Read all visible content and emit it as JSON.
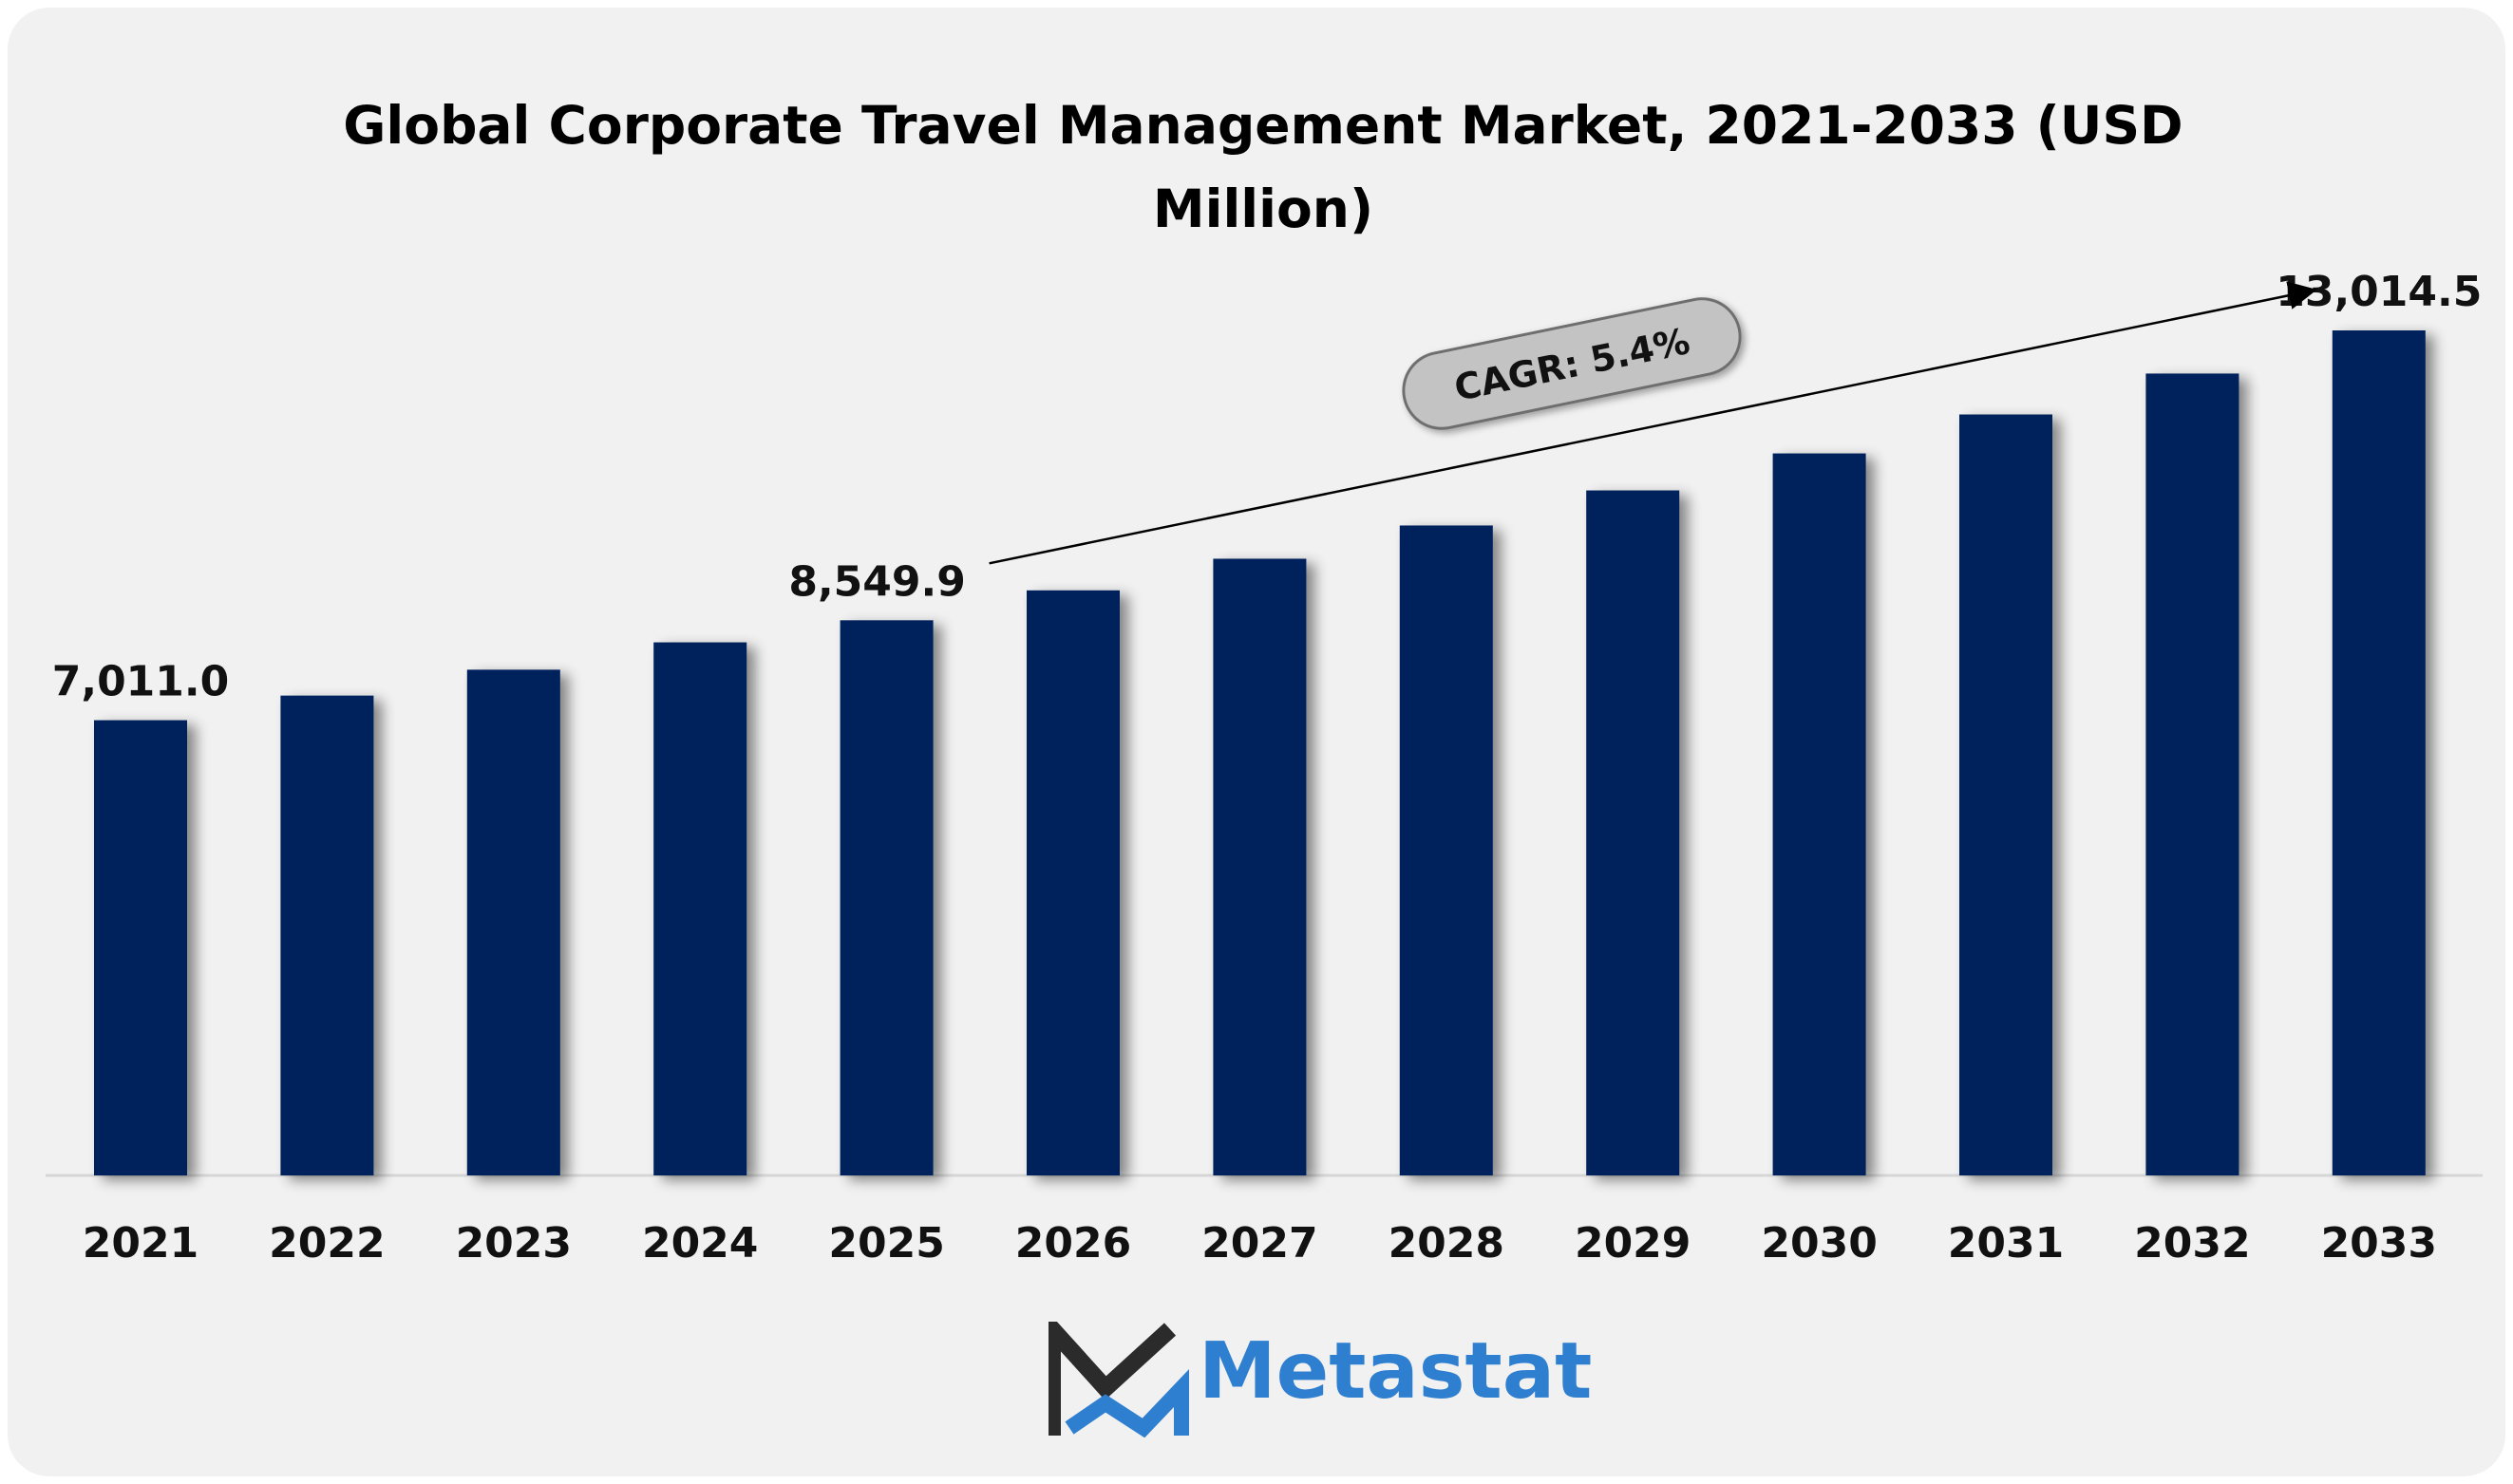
{
  "colors": {
    "bar": "#02205c",
    "background_card": "#f1f1f1",
    "cagr_pill": "#c3c3c3",
    "brand_blue": "#2f7fd0",
    "brand_dark": "#2b2b2b"
  },
  "brand": {
    "name": "Metastat",
    "logo_icon": "metastat-m-logo-icon"
  },
  "chart_data": {
    "type": "bar",
    "title": "Global Corporate Travel Management Market, 2021-2033 (USD Million)",
    "categories": [
      "2021",
      "2022",
      "2023",
      "2024",
      "2025",
      "2026",
      "2027",
      "2028",
      "2029",
      "2030",
      "2031",
      "2032",
      "2033"
    ],
    "values": [
      7011.0,
      7390,
      7789,
      8210,
      8549.9,
      9011,
      9498,
      10010,
      10550,
      11120,
      11720,
      12350,
      13014.5
    ],
    "data_labels": [
      {
        "index": 0,
        "text": "7,011.0"
      },
      {
        "index": 4,
        "text": "8,549.9"
      },
      {
        "index": 12,
        "text": "13,014.5"
      }
    ],
    "annotation": {
      "text": "CAGR: 5.4%",
      "from_index": 4,
      "to_index": 12
    },
    "ylim": [
      0,
      13014.5
    ],
    "grid": false,
    "legend": "none"
  }
}
